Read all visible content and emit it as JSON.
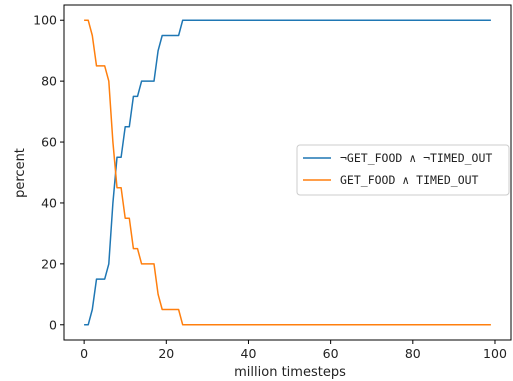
{
  "chart_data": {
    "type": "line",
    "xlabel": "million timesteps",
    "ylabel": "percent",
    "xlim": [
      -4.9,
      103.9
    ],
    "ylim": [
      -5,
      105
    ],
    "xticks": [
      0,
      20,
      40,
      60,
      80,
      100
    ],
    "yticks": [
      0,
      20,
      40,
      60,
      80,
      100
    ],
    "grid": false,
    "legend_position": "center-right",
    "series": [
      {
        "name": "¬GET_FOOD ∧ ¬TIMED_OUT",
        "color": "#1f77b4",
        "x": [
          0,
          1,
          2,
          3,
          4,
          5,
          6,
          7,
          8,
          9,
          10,
          11,
          12,
          13,
          14,
          15,
          16,
          17,
          18,
          19,
          20,
          21,
          22,
          23,
          24,
          25,
          30,
          40,
          50,
          60,
          70,
          80,
          90,
          99
        ],
        "y": [
          0,
          0,
          5,
          15,
          15,
          15,
          20,
          40,
          55,
          55,
          65,
          65,
          75,
          75,
          80,
          80,
          80,
          80,
          90,
          95,
          95,
          95,
          95,
          95,
          100,
          100,
          100,
          100,
          100,
          100,
          100,
          100,
          100,
          100
        ]
      },
      {
        "name": "GET_FOOD ∧ TIMED_OUT",
        "color": "#ff7f0e",
        "x": [
          0,
          1,
          2,
          3,
          4,
          5,
          6,
          7,
          8,
          9,
          10,
          11,
          12,
          13,
          14,
          15,
          16,
          17,
          18,
          19,
          20,
          21,
          22,
          23,
          24,
          25,
          30,
          40,
          50,
          60,
          70,
          80,
          90,
          99
        ],
        "y": [
          100,
          100,
          95,
          85,
          85,
          85,
          80,
          60,
          45,
          45,
          35,
          35,
          25,
          25,
          20,
          20,
          20,
          20,
          10,
          5,
          5,
          5,
          5,
          5,
          0,
          0,
          0,
          0,
          0,
          0,
          0,
          0,
          0,
          0
        ]
      }
    ]
  }
}
